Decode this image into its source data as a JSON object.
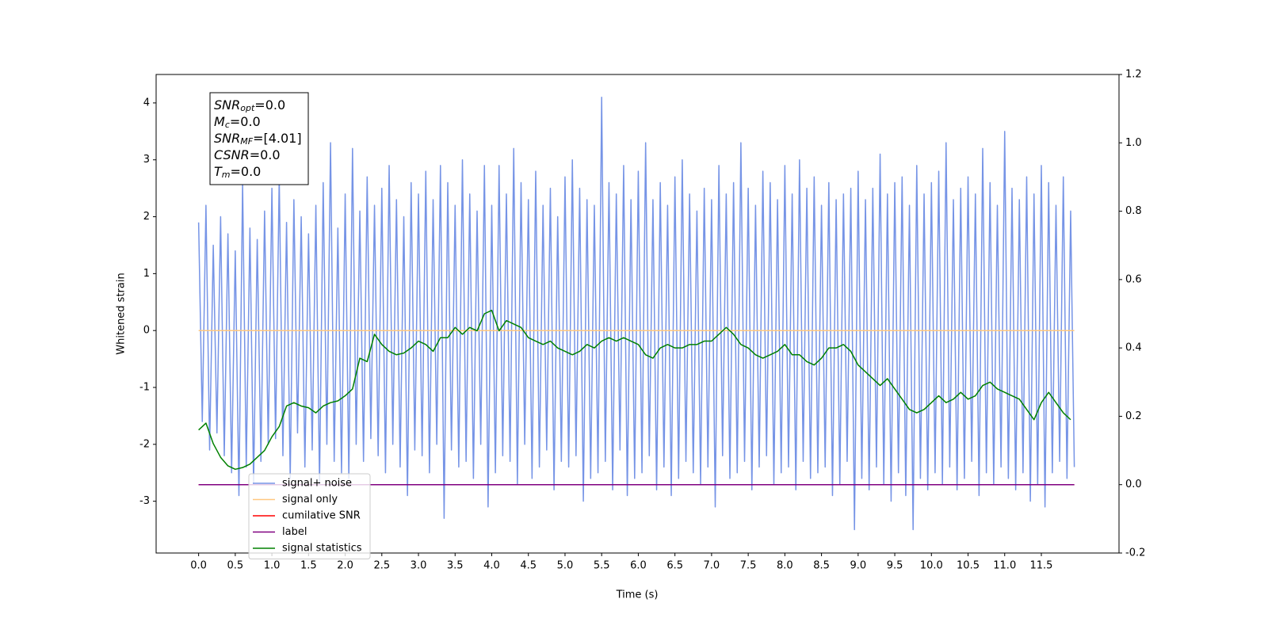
{
  "chart_data": {
    "type": "line",
    "xlabel": "Time (s)",
    "ylabel": "Whitened strain",
    "xlim": [
      -0.58,
      12.56
    ],
    "ylim": [
      -3.91,
      4.5
    ],
    "y2lim": [
      -0.2,
      1.2
    ],
    "xticks": [
      {
        "value": 0,
        "label": "0.0"
      },
      0.5,
      {
        "value": 1,
        "label": "1.0"
      },
      1.5,
      {
        "value": 2,
        "label": "2.0"
      },
      2.5,
      {
        "value": 3,
        "label": "3.0"
      },
      3.5,
      {
        "value": 4,
        "label": "4.0"
      },
      4.5,
      {
        "value": 5,
        "label": "5.0"
      },
      5.5,
      {
        "value": 6,
        "label": "6.0"
      },
      6.5,
      {
        "value": 7,
        "label": "7.0"
      },
      7.5,
      {
        "value": 8,
        "label": "8.0"
      },
      8.5,
      {
        "value": 9,
        "label": "9.0"
      },
      9.5,
      {
        "value": 10,
        "label": "10.0"
      },
      10.5,
      {
        "value": 11,
        "label": "11.0"
      },
      11.5
    ],
    "yticks": [
      -3,
      -2,
      -1,
      0,
      1,
      2,
      3,
      4
    ],
    "y2ticks": [
      -0.2,
      {
        "value": 0,
        "label": "0.0"
      },
      0.2,
      0.4,
      0.6,
      0.8,
      {
        "value": 1,
        "label": "1.0"
      },
      1.2
    ],
    "legend": "lower left",
    "annotation": [
      {
        "text": "SNR",
        "sub": "opt",
        "value": "=0.0"
      },
      {
        "text": "M",
        "sub": "c",
        "value": "=0.0"
      },
      {
        "text": "SNR",
        "sub": "MF",
        "value": "=[4.01]"
      },
      {
        "text": "CSNR",
        "sub": "",
        "value": "=0.0"
      },
      {
        "text": "T",
        "sub": "m",
        "value": "=0.0"
      }
    ],
    "series": [
      {
        "name": "signal+ noise",
        "color": "#7694e6",
        "x": [
          0,
          0.05,
          0.1,
          0.15,
          0.2,
          0.25,
          0.3,
          0.35,
          0.4,
          0.45,
          0.5,
          0.55,
          0.6,
          0.65,
          0.7,
          0.75,
          0.8,
          0.85,
          0.9,
          0.95,
          1,
          1.05,
          1.1,
          1.15,
          1.2,
          1.25,
          1.3,
          1.35,
          1.4,
          1.45,
          1.5,
          1.55,
          1.6,
          1.65,
          1.7,
          1.75,
          1.8,
          1.85,
          1.9,
          1.95,
          2,
          2.05,
          2.1,
          2.15,
          2.2,
          2.25,
          2.3,
          2.35,
          2.4,
          2.45,
          2.5,
          2.55,
          2.6,
          2.65,
          2.7,
          2.75,
          2.8,
          2.85,
          2.9,
          2.95,
          3,
          3.05,
          3.1,
          3.15,
          3.2,
          3.25,
          3.3,
          3.35,
          3.4,
          3.45,
          3.5,
          3.55,
          3.6,
          3.65,
          3.7,
          3.75,
          3.8,
          3.85,
          3.9,
          3.95,
          4,
          4.05,
          4.1,
          4.15,
          4.2,
          4.25,
          4.3,
          4.35,
          4.4,
          4.45,
          4.5,
          4.55,
          4.6,
          4.65,
          4.7,
          4.75,
          4.8,
          4.85,
          4.9,
          4.95,
          5,
          5.05,
          5.1,
          5.15,
          5.2,
          5.25,
          5.3,
          5.35,
          5.4,
          5.45,
          5.5,
          5.55,
          5.6,
          5.65,
          5.7,
          5.75,
          5.8,
          5.85,
          5.9,
          5.95,
          6,
          6.05,
          6.1,
          6.15,
          6.2,
          6.25,
          6.3,
          6.35,
          6.4,
          6.45,
          6.5,
          6.55,
          6.6,
          6.65,
          6.7,
          6.75,
          6.8,
          6.85,
          6.9,
          6.95,
          7,
          7.05,
          7.1,
          7.15,
          7.2,
          7.25,
          7.3,
          7.35,
          7.4,
          7.45,
          7.5,
          7.55,
          7.6,
          7.65,
          7.7,
          7.75,
          7.8,
          7.85,
          7.9,
          7.95,
          8,
          8.05,
          8.1,
          8.15,
          8.2,
          8.25,
          8.3,
          8.35,
          8.4,
          8.45,
          8.5,
          8.55,
          8.6,
          8.65,
          8.7,
          8.75,
          8.8,
          8.85,
          8.9,
          8.95,
          9,
          9.05,
          9.1,
          9.15,
          9.2,
          9.25,
          9.3,
          9.35,
          9.4,
          9.45,
          9.5,
          9.55,
          9.6,
          9.65,
          9.7,
          9.75,
          9.8,
          9.85,
          9.9,
          9.95,
          10,
          10.05,
          10.1,
          10.15,
          10.2,
          10.25,
          10.3,
          10.35,
          10.4,
          10.45,
          10.5,
          10.55,
          10.6,
          10.65,
          10.7,
          10.75,
          10.8,
          10.85,
          10.9,
          10.95,
          11,
          11.05,
          11.1,
          11.15,
          11.2,
          11.25,
          11.3,
          11.35,
          11.4,
          11.45,
          11.5,
          11.55,
          11.6,
          11.65,
          11.7,
          11.75,
          11.8,
          11.85,
          11.9,
          11.95
        ],
        "values": [
          1.9,
          -1.6,
          2.2,
          -2.1,
          1.5,
          -1.8,
          2.0,
          -2.2,
          1.7,
          -2.5,
          1.4,
          -2.9,
          2.6,
          -2.4,
          1.8,
          -2.7,
          1.6,
          -2.3,
          2.1,
          -2.0,
          2.5,
          -1.9,
          2.7,
          -2.2,
          1.9,
          -2.6,
          2.3,
          -1.8,
          2.0,
          -2.4,
          1.7,
          -2.1,
          2.2,
          -2.7,
          2.6,
          -2.0,
          3.3,
          -2.3,
          1.8,
          -2.5,
          2.4,
          -2.6,
          3.2,
          -2.0,
          2.1,
          -2.3,
          2.7,
          -1.9,
          2.2,
          -2.2,
          2.5,
          -2.5,
          2.9,
          -2.0,
          2.3,
          -2.4,
          2.0,
          -2.9,
          2.6,
          -2.1,
          2.4,
          -2.2,
          2.8,
          -2.5,
          2.3,
          -2.0,
          2.9,
          -3.3,
          2.6,
          -2.1,
          2.2,
          -2.4,
          3.0,
          -2.3,
          2.4,
          -2.6,
          2.1,
          -2.0,
          2.9,
          -3.1,
          2.2,
          -2.5,
          2.9,
          -2.2,
          2.4,
          -2.3,
          3.2,
          -2.7,
          2.6,
          -2.0,
          2.3,
          -2.6,
          2.8,
          -2.4,
          2.2,
          -2.1,
          2.5,
          -2.8,
          2.0,
          -2.3,
          2.7,
          -2.4,
          3.0,
          -2.2,
          2.5,
          -3.0,
          2.3,
          -2.6,
          2.2,
          -2.5,
          4.1,
          -2.3,
          2.6,
          -2.8,
          2.4,
          -2.1,
          2.9,
          -2.9,
          2.3,
          -2.6,
          2.8,
          -2.5,
          3.3,
          -2.2,
          2.3,
          -2.8,
          2.6,
          -2.4,
          2.2,
          -2.9,
          2.7,
          -2.6,
          3.0,
          -2.3,
          2.4,
          -2.5,
          2.1,
          -2.7,
          2.5,
          -2.4,
          2.3,
          -3.1,
          2.9,
          -2.2,
          2.4,
          -2.6,
          2.6,
          -2.5,
          3.3,
          -2.3,
          2.5,
          -2.8,
          2.2,
          -2.4,
          2.8,
          -2.2,
          2.6,
          -2.7,
          2.3,
          -2.5,
          2.9,
          -2.4,
          2.4,
          -2.8,
          3.0,
          -2.3,
          2.5,
          -2.6,
          2.7,
          -2.5,
          2.2,
          -2.4,
          2.6,
          -2.9,
          2.3,
          -2.7,
          2.4,
          -2.3,
          2.5,
          -3.5,
          2.8,
          -2.6,
          2.3,
          -2.8,
          2.5,
          -2.4,
          3.1,
          -2.7,
          2.4,
          -3.0,
          2.6,
          -2.5,
          2.7,
          -2.9,
          2.2,
          -3.5,
          2.9,
          -2.6,
          2.4,
          -2.8,
          2.6,
          -2.5,
          2.8,
          -2.7,
          3.3,
          -2.4,
          2.3,
          -2.8,
          2.5,
          -2.6,
          2.7,
          -2.3,
          2.4,
          -2.9,
          3.2,
          -2.5,
          2.6,
          -2.7,
          2.2,
          -2.4,
          3.5,
          -2.6,
          2.5,
          -2.8,
          2.3,
          -2.5,
          2.7,
          -3.0,
          2.4,
          -2.7,
          2.9,
          -3.1,
          2.6,
          -2.5,
          2.2,
          -2.3,
          2.7,
          -2.6,
          2.1,
          -2.4
        ]
      },
      {
        "name": "signal only",
        "color": "#ffc880",
        "x": [
          0,
          11.95
        ],
        "values": [
          0,
          0
        ]
      },
      {
        "name": "cumilative SNR",
        "color": "#ff0000",
        "axis": "y2",
        "x": [
          0,
          11.95
        ],
        "values": [
          0,
          0
        ]
      },
      {
        "name": "label",
        "color": "#800080",
        "axis": "y2",
        "x": [
          0,
          11.95
        ],
        "values": [
          0,
          0
        ]
      },
      {
        "name": "signal statistics",
        "color": "#008000",
        "axis": "y2",
        "x": [
          0,
          0.1,
          0.2,
          0.3,
          0.4,
          0.5,
          0.6,
          0.7,
          0.8,
          0.9,
          1,
          1.1,
          1.2,
          1.3,
          1.4,
          1.5,
          1.6,
          1.7,
          1.8,
          1.9,
          2,
          2.1,
          2.2,
          2.3,
          2.4,
          2.5,
          2.6,
          2.7,
          2.8,
          2.9,
          3,
          3.1,
          3.2,
          3.3,
          3.4,
          3.5,
          3.6,
          3.7,
          3.8,
          3.9,
          4,
          4.1,
          4.2,
          4.3,
          4.4,
          4.5,
          4.6,
          4.7,
          4.8,
          4.9,
          5,
          5.1,
          5.2,
          5.3,
          5.4,
          5.5,
          5.6,
          5.7,
          5.8,
          5.9,
          6,
          6.1,
          6.2,
          6.3,
          6.4,
          6.5,
          6.6,
          6.7,
          6.8,
          6.9,
          7,
          7.1,
          7.2,
          7.3,
          7.4,
          7.5,
          7.6,
          7.7,
          7.8,
          7.9,
          8,
          8.1,
          8.2,
          8.3,
          8.4,
          8.5,
          8.6,
          8.7,
          8.8,
          8.9,
          9,
          9.1,
          9.2,
          9.3,
          9.4,
          9.5,
          9.6,
          9.7,
          9.8,
          9.9,
          10,
          10.1,
          10.2,
          10.3,
          10.4,
          10.5,
          10.6,
          10.7,
          10.8,
          10.9,
          11,
          11.1,
          11.2,
          11.3,
          11.4,
          11.5,
          11.6,
          11.7,
          11.8,
          11.9
        ],
        "values": [
          0.16,
          0.18,
          0.12,
          0.08,
          0.055,
          0.045,
          0.05,
          0.06,
          0.08,
          0.1,
          0.14,
          0.17,
          0.23,
          0.24,
          0.23,
          0.225,
          0.21,
          0.23,
          0.24,
          0.245,
          0.26,
          0.28,
          0.37,
          0.36,
          0.44,
          0.41,
          0.39,
          0.38,
          0.385,
          0.4,
          0.42,
          0.41,
          0.39,
          0.43,
          0.43,
          0.46,
          0.44,
          0.46,
          0.45,
          0.5,
          0.51,
          0.45,
          0.48,
          0.47,
          0.46,
          0.43,
          0.42,
          0.41,
          0.42,
          0.4,
          0.39,
          0.38,
          0.39,
          0.41,
          0.4,
          0.42,
          0.43,
          0.42,
          0.43,
          0.42,
          0.41,
          0.38,
          0.37,
          0.4,
          0.41,
          0.4,
          0.4,
          0.41,
          0.41,
          0.42,
          0.42,
          0.44,
          0.46,
          0.44,
          0.41,
          0.4,
          0.38,
          0.37,
          0.38,
          0.39,
          0.41,
          0.38,
          0.38,
          0.36,
          0.35,
          0.37,
          0.4,
          0.4,
          0.41,
          0.39,
          0.35,
          0.33,
          0.31,
          0.29,
          0.31,
          0.28,
          0.25,
          0.22,
          0.21,
          0.22,
          0.24,
          0.26,
          0.24,
          0.25,
          0.27,
          0.25,
          0.26,
          0.29,
          0.3,
          0.28,
          0.27,
          0.26,
          0.25,
          0.22,
          0.19,
          0.24,
          0.27,
          0.24,
          0.21,
          0.19
        ]
      }
    ]
  }
}
